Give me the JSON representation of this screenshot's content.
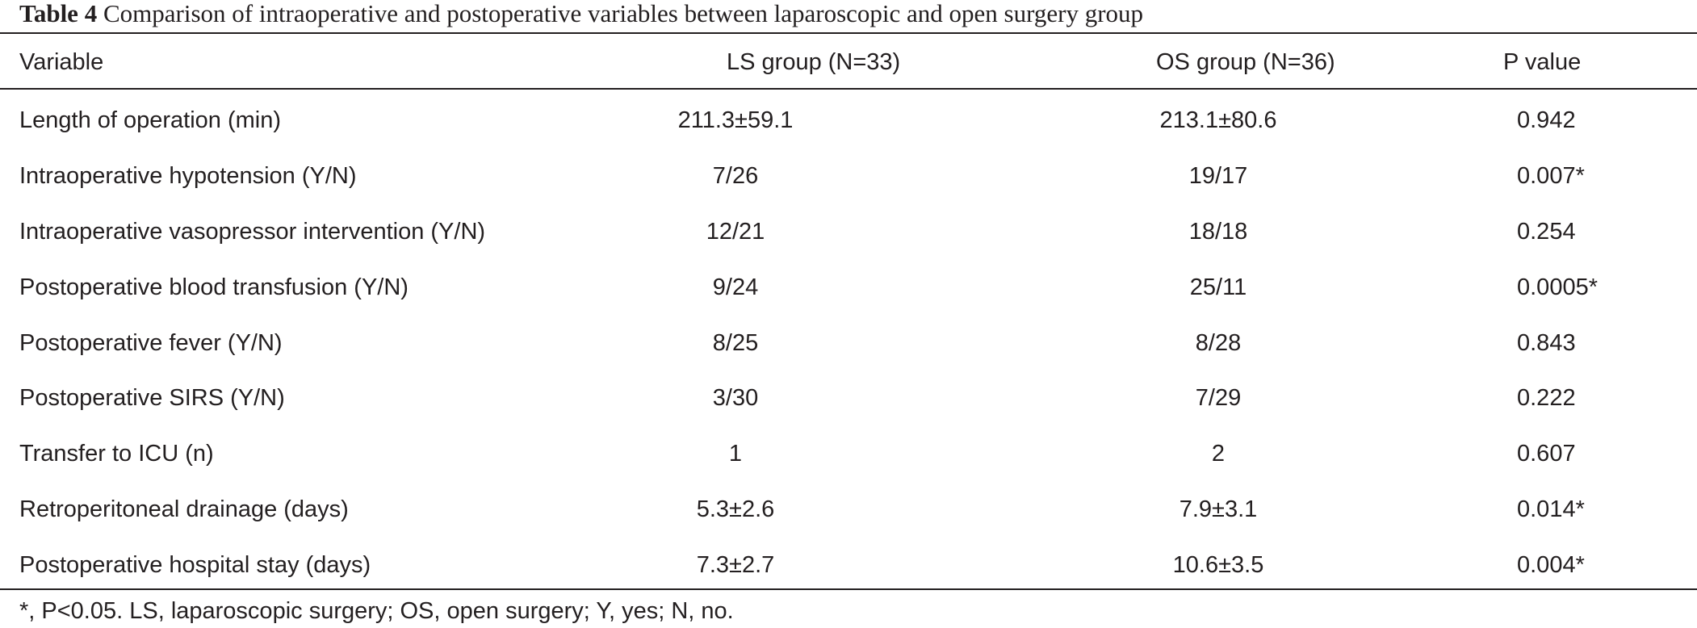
{
  "table": {
    "label": "Table 4",
    "caption": "Comparison of intraoperative and postoperative variables between laparoscopic and open surgery group",
    "columns": [
      "Variable",
      "LS group (N=33)",
      "OS group (N=36)",
      "P value"
    ],
    "rows": [
      {
        "variable": "Length of operation (min)",
        "ls": "211.3±59.1",
        "os": "213.1±80.6",
        "p": "0.942"
      },
      {
        "variable": "Intraoperative hypotension (Y/N)",
        "ls": "7/26",
        "os": "19/17",
        "p": "0.007*"
      },
      {
        "variable": "Intraoperative vasopressor intervention (Y/N)",
        "ls": "12/21",
        "os": "18/18",
        "p": "0.254"
      },
      {
        "variable": "Postoperative blood transfusion (Y/N)",
        "ls": "9/24",
        "os": "25/11",
        "p": "0.0005*"
      },
      {
        "variable": "Postoperative fever (Y/N)",
        "ls": "8/25",
        "os": "8/28",
        "p": "0.843"
      },
      {
        "variable": "Postoperative SIRS (Y/N)",
        "ls": "3/30",
        "os": "7/29",
        "p": "0.222"
      },
      {
        "variable": "Transfer to ICU (n)",
        "ls": "1",
        "os": "2",
        "p": "0.607"
      },
      {
        "variable": "Retroperitoneal drainage (days)",
        "ls": "5.3±2.6",
        "os": "7.9±3.1",
        "p": "0.014*"
      },
      {
        "variable": "Postoperative hospital stay (days)",
        "ls": "7.3±2.7",
        "os": "10.6±3.5",
        "p": "0.004*"
      }
    ],
    "footnote": "*, P<0.05. LS, laparoscopic surgery; OS, open surgery; Y, yes; N, no."
  }
}
